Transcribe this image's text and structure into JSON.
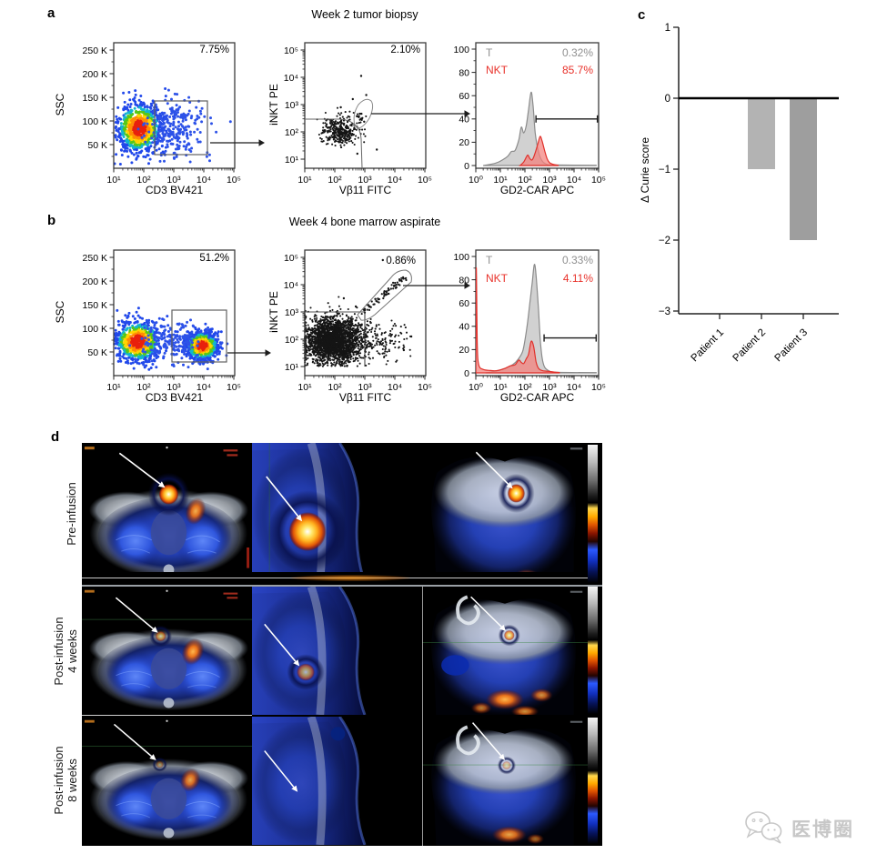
{
  "figure": {
    "panel_a": {
      "label": "a",
      "title": "Week 2 tumor biopsy",
      "ssc": {
        "ylabel": "SSC",
        "xlabel": "CD3 BV421",
        "gate_pct": "7.75%"
      },
      "inkt": {
        "ylabel": "iNKT PE",
        "xlabel": "Vβ11 FITC",
        "gate_pct": "2.10%"
      },
      "hist": {
        "xlabel": "GD2-CAR APC",
        "t_label": "T",
        "t_pct": "0.32%",
        "nkt_label": "NKT",
        "nkt_pct": "85.7%"
      }
    },
    "panel_b": {
      "label": "b",
      "title": "Week 4 bone marrow aspirate",
      "ssc": {
        "ylabel": "SSC",
        "xlabel": "CD3 BV421",
        "gate_pct": "51.2%"
      },
      "inkt": {
        "ylabel": "iNKT PE",
        "xlabel": "Vβ11 FITC",
        "gate_pct": "0.86%"
      },
      "hist": {
        "xlabel": "GD2-CAR APC",
        "t_label": "T",
        "t_pct": "0.33%",
        "nkt_label": "NKT",
        "nkt_pct": "4.11%"
      }
    },
    "panel_c": {
      "label": "c",
      "ylabel": "Δ Curie score"
    },
    "panel_d": {
      "label": "d",
      "rows": [
        {
          "l1": "Pre-infusion",
          "l2": ""
        },
        {
          "l1": "Post-infusion",
          "l2": "4 weeks"
        },
        {
          "l1": "Post-infusion",
          "l2": "8 weeks"
        }
      ]
    },
    "watermark": {
      "text": "医博圈"
    }
  },
  "ticks": {
    "log5": [
      "10¹",
      "10²",
      "10³",
      "10⁴",
      "10⁵"
    ],
    "log6": [
      "10⁰",
      "10¹",
      "10²",
      "10³",
      "10⁴",
      "10⁵"
    ],
    "ssc": [
      "250 K",
      "200 K",
      "150 K",
      "100 K",
      "50 K"
    ],
    "hist": [
      "0",
      "20",
      "40",
      "60",
      "80",
      "100"
    ],
    "curie": [
      "1",
      "0",
      "−1",
      "−2",
      "−3"
    ]
  },
  "chart_data": [
    {
      "id": "a_ssc",
      "type": "scatter",
      "xlabel": "CD3 BV421",
      "ylabel": "SSC",
      "xscale": "log10",
      "xrange_log": [
        1,
        5
      ],
      "yrange": [
        0,
        265000
      ],
      "gate_pct": 7.75,
      "gate_x_log": [
        2.36,
        4.12
      ],
      "gate_y": [
        29000,
        142000
      ],
      "seed": 11,
      "clusters": [
        {
          "n": 850,
          "cx_log": 1.85,
          "sx_log": 0.38,
          "cy": 85000,
          "sy": 27000,
          "palette": "jet"
        },
        {
          "n": 230,
          "cx_log": 3.15,
          "sx_log": 0.55,
          "cy": 82000,
          "sy": 30000,
          "palette": "blue"
        }
      ]
    },
    {
      "id": "a_inkt",
      "type": "scatter",
      "xlabel": "Vβ11 FITC",
      "ylabel": "iNKT PE",
      "xscale": "log10",
      "xrange_log": [
        1,
        5
      ],
      "yrange_log": [
        1,
        5
      ],
      "gate_pct": 2.1,
      "seed": 33,
      "clusters": [
        {
          "n": 340,
          "cx_log": 2.18,
          "sx_log": 0.3,
          "cy_log": 2.0,
          "sy_log": 0.26,
          "palette": "black"
        },
        {
          "n": 25,
          "cx_log": 2.35,
          "sx_log": 0.45,
          "cy_log": 2.3,
          "sy_log": 0.4,
          "palette": "black"
        }
      ],
      "gate_cluster": {
        "n": 9,
        "cx_log": 2.85,
        "sx_log": 0.1,
        "cy_log": 2.55,
        "sy_log": 0.13
      },
      "outliers_log": [
        [
          2.88,
          4.05
        ],
        [
          2.6,
          3.2
        ],
        [
          3.05,
          3.35
        ],
        [
          2.2,
          2.9
        ],
        [
          3.4,
          1.35
        ],
        [
          2.75,
          1.2
        ]
      ]
    },
    {
      "id": "a_hist",
      "type": "histogram",
      "xlabel": "GD2-CAR APC",
      "xscale": "log10",
      "xrange_log": [
        0,
        5
      ],
      "ylim": [
        0,
        100
      ],
      "gate": {
        "y": 40,
        "x1_log": 2.45,
        "x2_log": 4.95
      },
      "series": [
        {
          "name": "T",
          "pct": 0.32,
          "color_fill": "#cdcdcd",
          "color_line": "#8b8b8b",
          "points": [
            [
              0.3,
              0
            ],
            [
              0.8,
              2
            ],
            [
              1.1,
              5
            ],
            [
              1.3,
              8
            ],
            [
              1.45,
              12
            ],
            [
              1.6,
              13
            ],
            [
              1.75,
              22
            ],
            [
              1.85,
              33
            ],
            [
              1.95,
              28
            ],
            [
              2.05,
              34
            ],
            [
              2.15,
              48
            ],
            [
              2.25,
              63
            ],
            [
              2.33,
              52
            ],
            [
              2.42,
              28
            ],
            [
              2.55,
              12
            ],
            [
              2.7,
              4
            ],
            [
              2.9,
              1
            ],
            [
              3.2,
              0.5
            ],
            [
              4.9,
              0.2
            ]
          ]
        },
        {
          "name": "NKT",
          "pct": 85.7,
          "color_fill": "#f4807b",
          "color_line": "#e0312b",
          "points": [
            [
              1.8,
              0
            ],
            [
              1.95,
              3
            ],
            [
              2.05,
              7
            ],
            [
              2.12,
              9
            ],
            [
              2.2,
              6
            ],
            [
              2.3,
              5
            ],
            [
              2.42,
              11
            ],
            [
              2.52,
              18
            ],
            [
              2.62,
              25
            ],
            [
              2.7,
              21
            ],
            [
              2.8,
              13
            ],
            [
              2.9,
              6
            ],
            [
              3.0,
              2.5
            ],
            [
              3.15,
              1
            ],
            [
              3.35,
              0.2
            ]
          ]
        }
      ]
    },
    {
      "id": "b_ssc",
      "type": "scatter",
      "xlabel": "CD3 BV421",
      "ylabel": "SSC",
      "xscale": "log10",
      "xrange_log": [
        1,
        5
      ],
      "yrange": [
        0,
        265000
      ],
      "gate_pct": 51.2,
      "gate_x_log": [
        2.94,
        4.76
      ],
      "gate_y": [
        29000,
        138000
      ],
      "seed": 22,
      "clusters": [
        {
          "n": 800,
          "cx_log": 1.8,
          "sx_log": 0.4,
          "cy": 72000,
          "sy": 22000,
          "palette": "jet"
        },
        {
          "n": 780,
          "cx_log": 3.95,
          "sx_log": 0.28,
          "cy": 63000,
          "sy": 15000,
          "palette": "jet"
        },
        {
          "n": 200,
          "cx_log": 2.9,
          "sx_log": 0.55,
          "cy": 70000,
          "sy": 20000,
          "palette": "blue"
        }
      ]
    },
    {
      "id": "b_inkt",
      "type": "scatter",
      "xlabel": "Vβ11 FITC",
      "ylabel": "iNKT PE",
      "xscale": "log10",
      "xrange_log": [
        1,
        5
      ],
      "yrange_log": [
        1,
        5
      ],
      "gate_pct": 0.86,
      "seed": 44,
      "clusters": [
        {
          "n": 2400,
          "cx_log": 1.95,
          "sx_log": 0.5,
          "cy_log": 1.95,
          "sy_log": 0.4,
          "palette": "black"
        },
        {
          "n": 130,
          "cx_log": 3.55,
          "sx_log": 0.45,
          "cy_log": 1.9,
          "sy_log": 0.4,
          "palette": "black"
        },
        {
          "n": 70,
          "line": [
            2.95,
            3.0,
            4.35,
            4.3
          ],
          "jitter": 0.09,
          "palette": "black"
        }
      ],
      "outliers_log": [
        [
          3.6,
          4.9
        ],
        [
          2.3,
          3.5
        ],
        [
          2.7,
          3.2
        ],
        [
          4.55,
          2.1
        ],
        [
          4.3,
          1.6
        ],
        [
          3.2,
          2.6
        ]
      ]
    },
    {
      "id": "b_hist",
      "type": "histogram",
      "xlabel": "GD2-CAR APC",
      "xscale": "log10",
      "xrange_log": [
        0,
        5
      ],
      "ylim": [
        0,
        100
      ],
      "gate": {
        "y": 30,
        "x1_log": 2.78,
        "x2_log": 4.9
      },
      "series": [
        {
          "name": "T",
          "pct": 0.33,
          "color_fill": "#cdcdcd",
          "color_line": "#8b8b8b",
          "points": [
            [
              0.4,
              0
            ],
            [
              0.9,
              2
            ],
            [
              1.2,
              4
            ],
            [
              1.5,
              7
            ],
            [
              1.7,
              11
            ],
            [
              1.9,
              18
            ],
            [
              2.0,
              28
            ],
            [
              2.1,
              42
            ],
            [
              2.2,
              60
            ],
            [
              2.3,
              78
            ],
            [
              2.38,
              93
            ],
            [
              2.45,
              85
            ],
            [
              2.55,
              55
            ],
            [
              2.62,
              30
            ],
            [
              2.7,
              13
            ],
            [
              2.8,
              5
            ],
            [
              3.0,
              1.5
            ],
            [
              3.3,
              0.5
            ],
            [
              4.9,
              0.2
            ]
          ]
        },
        {
          "name": "NKT",
          "pct": 4.11,
          "color_fill": "#f4807b",
          "color_line": "#e0312b",
          "points": [
            [
              0,
              0
            ],
            [
              0.02,
              90
            ],
            [
              0.06,
              25
            ],
            [
              0.12,
              7
            ],
            [
              0.3,
              3
            ],
            [
              0.6,
              2
            ],
            [
              0.9,
              2
            ],
            [
              1.2,
              4
            ],
            [
              1.4,
              6
            ],
            [
              1.6,
              7
            ],
            [
              1.75,
              11
            ],
            [
              1.85,
              9
            ],
            [
              1.95,
              8
            ],
            [
              2.05,
              12
            ],
            [
              2.15,
              16
            ],
            [
              2.25,
              27
            ],
            [
              2.35,
              23
            ],
            [
              2.45,
              10
            ],
            [
              2.55,
              4
            ],
            [
              2.7,
              2
            ],
            [
              2.9,
              1.5
            ],
            [
              3.1,
              1
            ],
            [
              3.4,
              0.3
            ]
          ]
        }
      ]
    },
    {
      "id": "c",
      "type": "bar",
      "ylabel": "Δ Curie score",
      "categories": [
        "Patient 1",
        "Patient 2",
        "Patient 3"
      ],
      "values": [
        0,
        -1,
        -2
      ],
      "ylim": [
        -3,
        1
      ],
      "yticks": [
        1,
        0,
        -1,
        -2,
        -3
      ],
      "bar_colors": [
        "#b3b3b3",
        "#b3b3b3",
        "#9e9e9e"
      ]
    }
  ]
}
